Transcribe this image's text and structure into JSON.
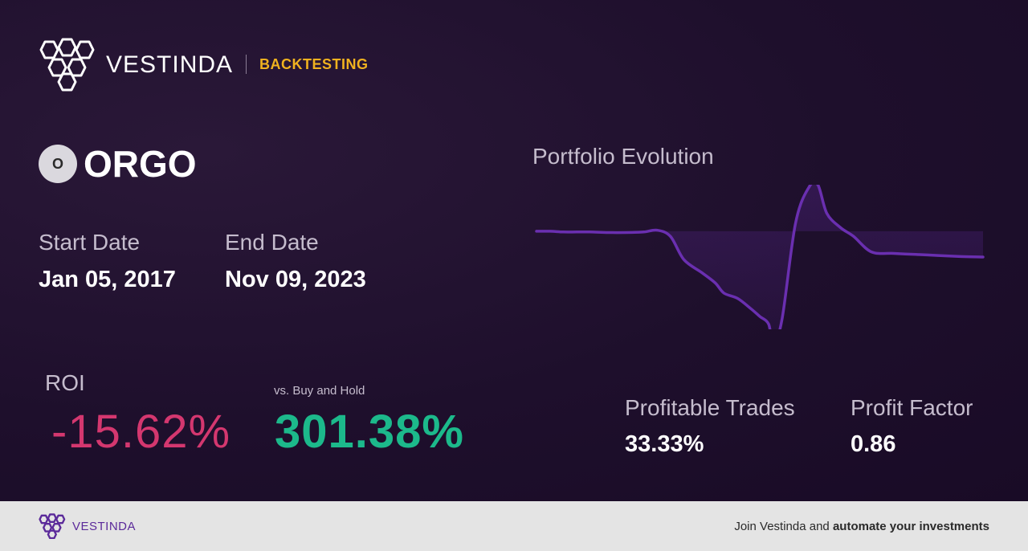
{
  "header": {
    "brand_name": "VESTINDA",
    "section_tag": "BACKTESTING"
  },
  "ticker": {
    "badge_letter": "O",
    "symbol": "ORGO"
  },
  "dates": {
    "start_label": "Start Date",
    "start_value": "Jan 05, 2017",
    "end_label": "End Date",
    "end_value": "Nov 09, 2023"
  },
  "roi": {
    "label": "ROI",
    "value": "-15.62%",
    "vs_label": "vs. Buy and Hold",
    "vs_value": "301.38%"
  },
  "stats": {
    "profitable_trades_label": "Profitable Trades",
    "profitable_trades_value": "33.33%",
    "profit_factor_label": "Profit Factor",
    "profit_factor_value": "0.86"
  },
  "chart": {
    "title": "Portfolio Evolution",
    "line_color": "#6a2fb0"
  },
  "chart_data": {
    "type": "area",
    "title": "Portfolio Evolution",
    "xlabel": "",
    "ylabel": "",
    "grid": false,
    "legend": "none",
    "baseline": 0,
    "x": [
      0,
      0.03,
      0.06,
      0.09,
      0.12,
      0.16,
      0.2,
      0.24,
      0.27,
      0.3,
      0.33,
      0.37,
      0.4,
      0.42,
      0.45,
      0.48,
      0.5,
      0.52,
      0.53,
      0.55,
      0.58,
      0.61,
      0.63,
      0.65,
      0.68,
      0.71,
      0.75,
      0.8,
      0.85,
      0.9,
      0.95,
      1.0
    ],
    "values": [
      0.0,
      0.0,
      -0.3,
      -0.3,
      -0.3,
      -0.5,
      -0.5,
      -0.3,
      0.4,
      -2.0,
      -11.0,
      -16.0,
      -20.0,
      -24.0,
      -26.0,
      -30.0,
      -33.0,
      -36.0,
      -44.0,
      -34.0,
      3.0,
      17.0,
      18.0,
      7.0,
      1.5,
      -2.0,
      -8.0,
      -8.6,
      -9.0,
      -9.4,
      -9.8,
      -10.0
    ],
    "ylim": [
      -38,
      18
    ]
  }
}
